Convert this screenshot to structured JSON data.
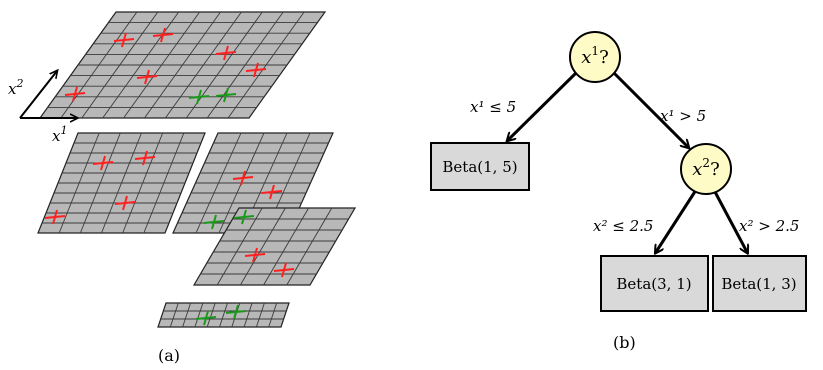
{
  "panel_a": {
    "caption": "(a)",
    "axis_x_base": "x",
    "axis_x_sup": "1",
    "axis_y_base": "x",
    "axis_y_sup": "2",
    "colors": {
      "red_mark": "#ff2020",
      "green_mark": "#1a9a1a",
      "plane_fill": "#b8b8b8"
    }
  },
  "panel_b": {
    "caption": "(b)",
    "root": {
      "base": "x",
      "sup": "1",
      "suffix": "?"
    },
    "inner": {
      "base": "x",
      "sup": "2",
      "suffix": "?"
    },
    "edges": {
      "left": "x¹ ≤ 5",
      "right": "x¹ > 5",
      "inner_left": "x² ≤ 2.5",
      "inner_right": "x² > 2.5"
    },
    "leaves": {
      "left": "Beta(1, 5)",
      "inner_left": "Beta(3, 1)",
      "inner_right": "Beta(1, 3)"
    },
    "colors": {
      "node_fill": "#fffbc6",
      "leaf_fill": "#d9d9d9"
    }
  }
}
